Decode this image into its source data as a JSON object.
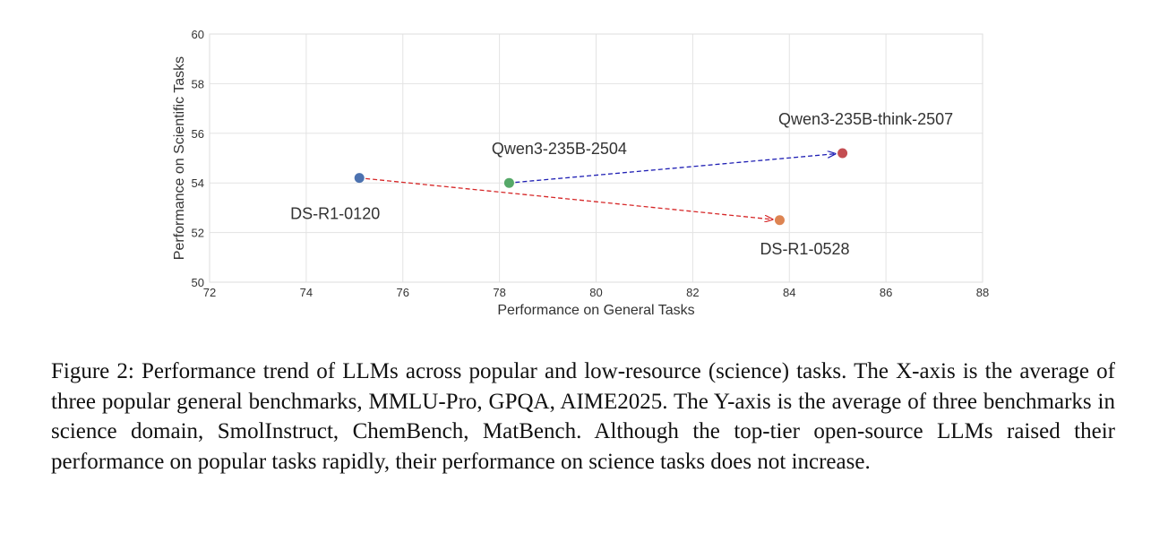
{
  "chart_data": {
    "type": "scatter",
    "xlabel": "Performance on General Tasks",
    "ylabel": "Performance on Scientific Tasks",
    "xlim": [
      72,
      88
    ],
    "ylim": [
      50,
      60
    ],
    "xticks": [
      72,
      74,
      76,
      78,
      80,
      82,
      84,
      86,
      88
    ],
    "yticks": [
      50,
      52,
      54,
      56,
      58,
      60
    ],
    "grid": true,
    "points": [
      {
        "label": "DS-R1-0120",
        "x": 75.1,
        "y": 54.2,
        "color": "#4c72b0",
        "label_pos": "below-left"
      },
      {
        "label": "Qwen3-235B-2504",
        "x": 78.2,
        "y": 54.0,
        "color": "#55a868",
        "label_pos": "above"
      },
      {
        "label": "DS-R1-0528",
        "x": 83.8,
        "y": 52.5,
        "color": "#dd8452",
        "label_pos": "below"
      },
      {
        "label": "Qwen3-235B-think-2507",
        "x": 85.1,
        "y": 55.2,
        "color": "#c44e52",
        "label_pos": "above-left"
      }
    ],
    "arrows": [
      {
        "from": "DS-R1-0120",
        "to": "DS-R1-0528",
        "color": "#d62728",
        "style": "dashed"
      },
      {
        "from": "Qwen3-235B-2504",
        "to": "Qwen3-235B-think-2507",
        "color": "#1f1fb4",
        "style": "dashed"
      }
    ]
  },
  "caption": "Figure 2: Performance trend of LLMs across popular and low-resource (science) tasks. The X-axis is the average of three popular general benchmarks, MMLU-Pro, GPQA, AIME2025. The Y-axis is the average of three benchmarks in science domain, SmolInstruct, ChemBench, MatBench. Although the top-tier open-source LLMs raised their performance on popular tasks rapidly, their performance on science tasks does not increase."
}
